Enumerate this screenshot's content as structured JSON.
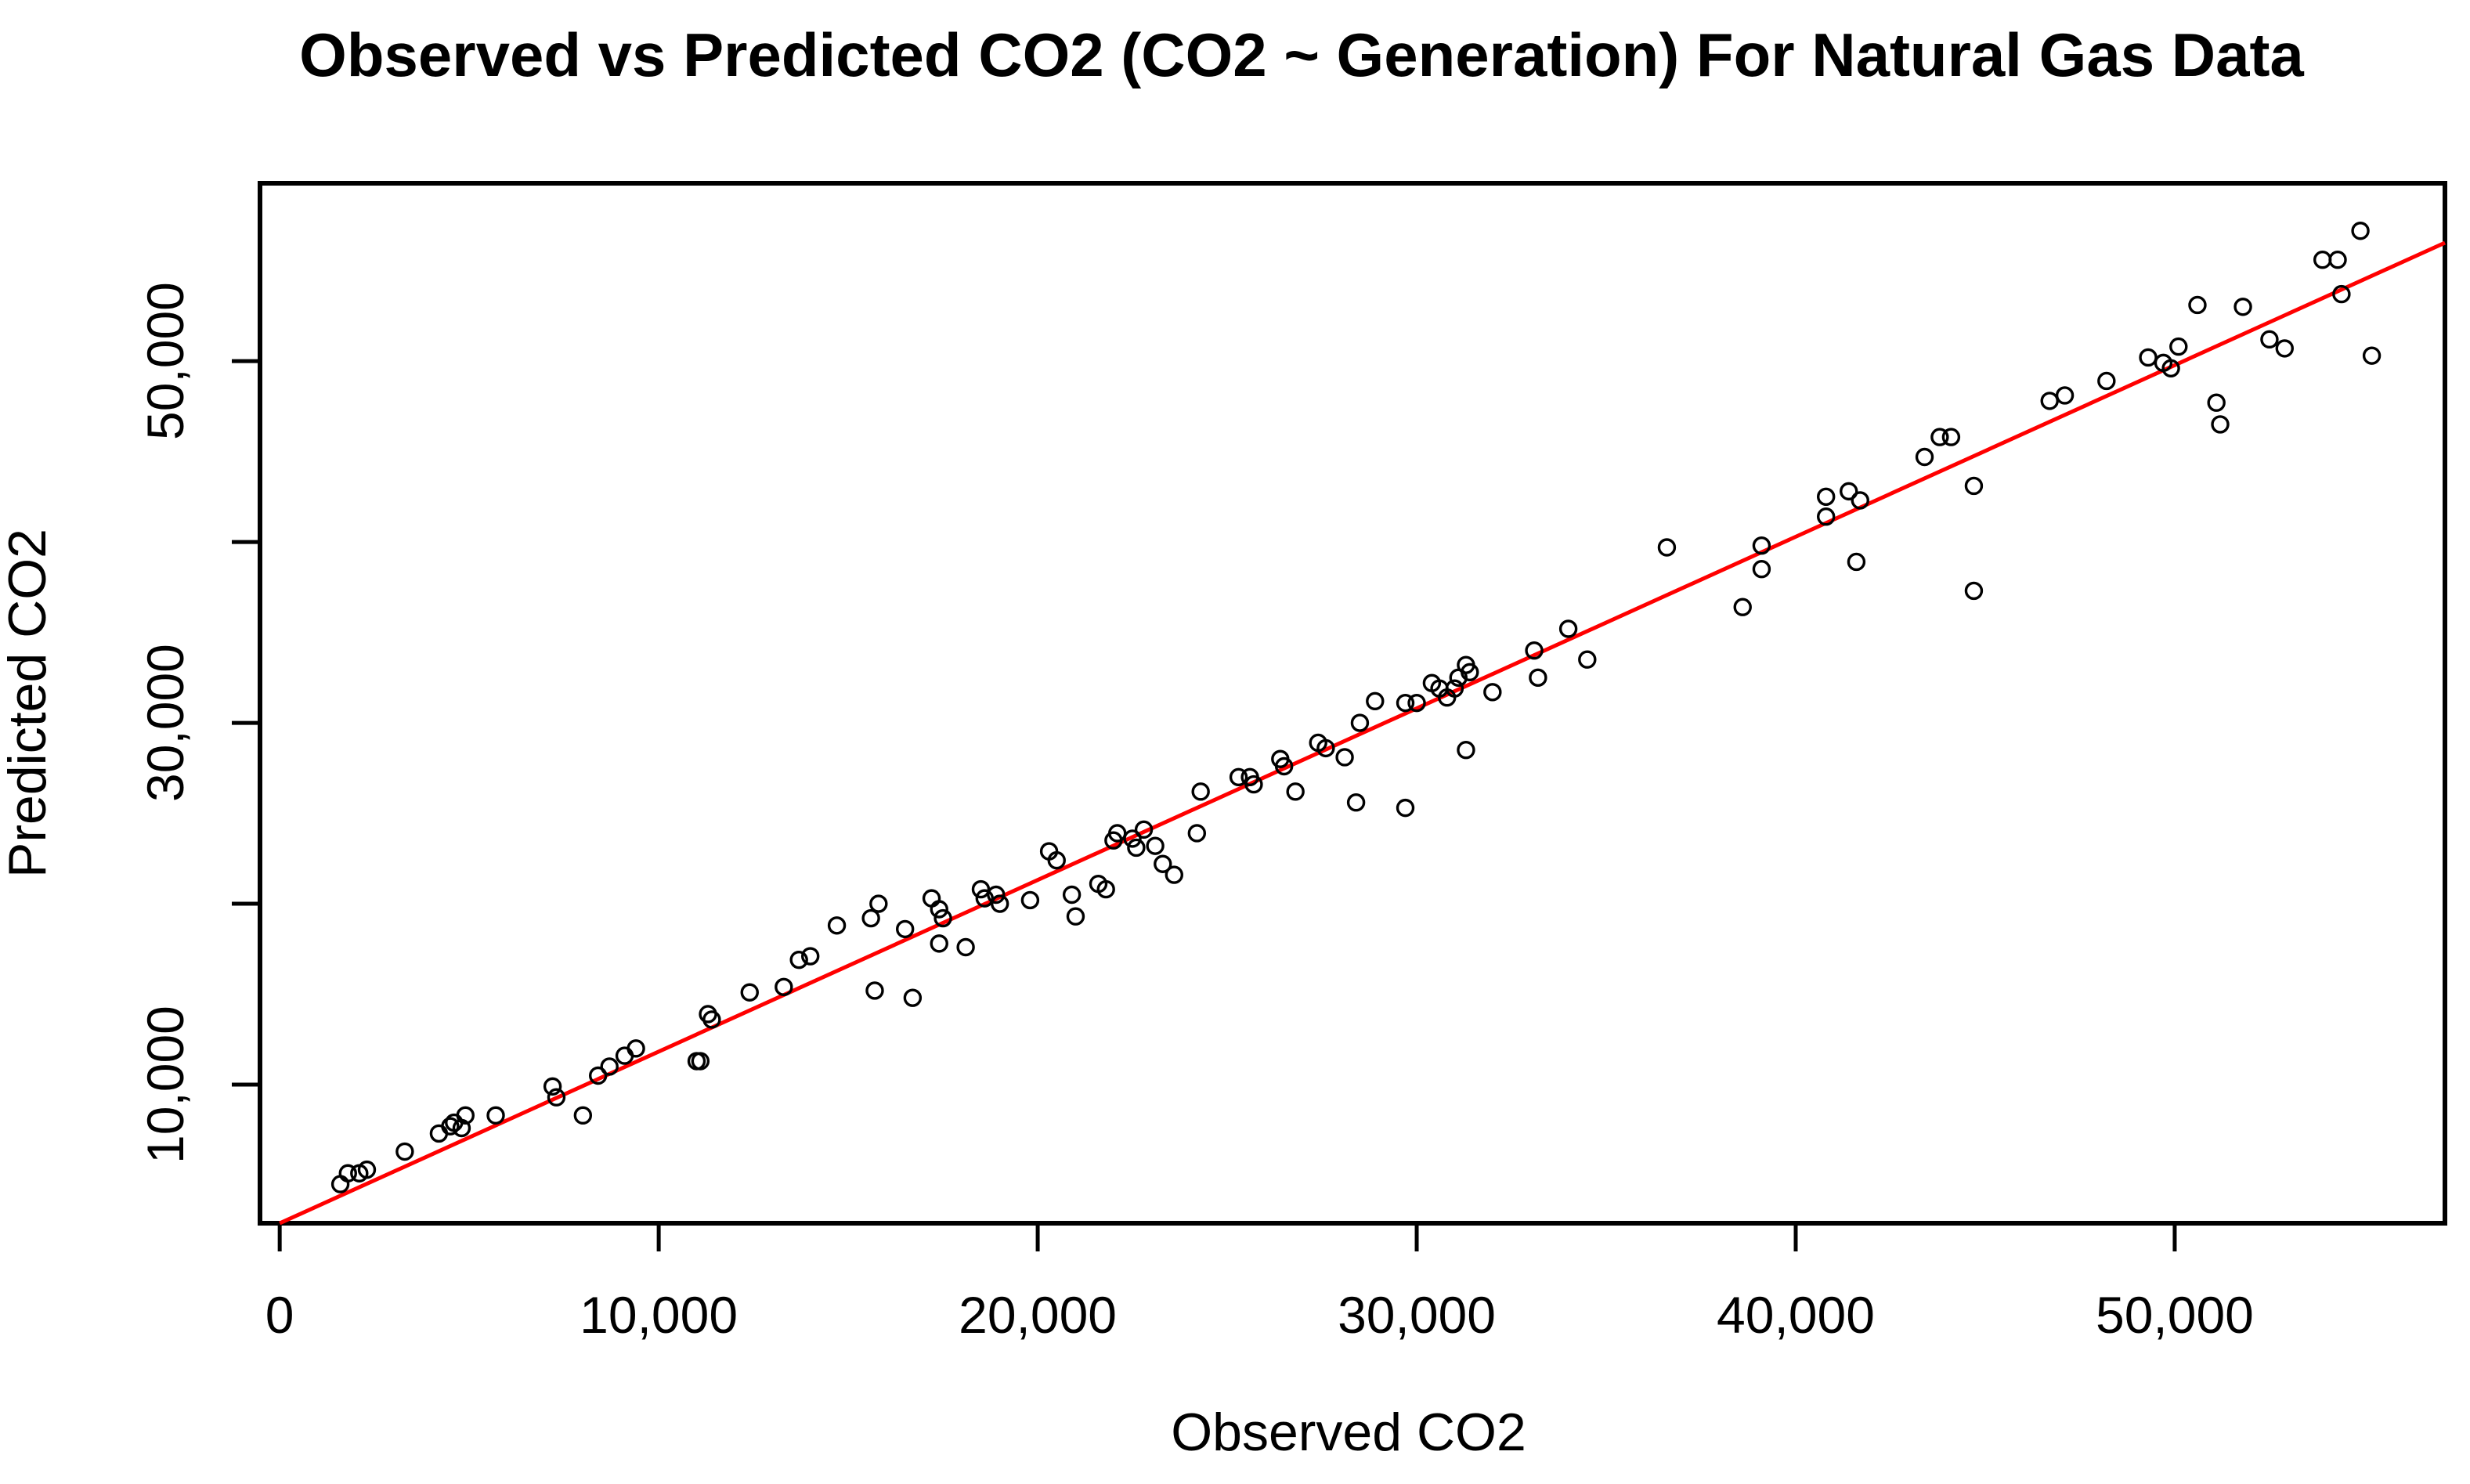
{
  "figure": {
    "background_color": "#FFFFFF",
    "axis_color": "#000000",
    "marker": "open-circle"
  },
  "chart_data": {
    "type": "scatter",
    "title": "Observed vs Predicted CO2 (CO2 ~ Generation) For Natural Gas Data",
    "xlabel": "Observed CO2",
    "ylabel": "Predicted CO2",
    "xlim": [
      -520,
      57130
    ],
    "ylim": [
      2340,
      59830
    ],
    "grid": false,
    "legend_position": "none",
    "point_color": "#000000",
    "x_ticks": [
      {
        "value": 0,
        "label": "0"
      },
      {
        "value": 10000,
        "label": "10,000"
      },
      {
        "value": 20000,
        "label": "20,000"
      },
      {
        "value": 30000,
        "label": "30,000"
      },
      {
        "value": 40000,
        "label": "40,000"
      },
      {
        "value": 50000,
        "label": "50,000"
      }
    ],
    "y_ticks": [
      {
        "value": 10000,
        "label": "10,000"
      },
      {
        "value": 20000,
        "label": ""
      },
      {
        "value": 30000,
        "label": "30,000"
      },
      {
        "value": 40000,
        "label": ""
      },
      {
        "value": 50000,
        "label": "50,000"
      },
      {
        "value": 60000,
        "label": ""
      }
    ],
    "fit_line": {
      "color": "#FF0000",
      "x1": 0,
      "y1": 2340,
      "x2": 57130,
      "y2": 56540
    },
    "points": [
      [
        1600,
        4500
      ],
      [
        1800,
        5100
      ],
      [
        2100,
        5100
      ],
      [
        2300,
        5300
      ],
      [
        3300,
        6300
      ],
      [
        4200,
        7300
      ],
      [
        4500,
        7700
      ],
      [
        4600,
        7900
      ],
      [
        4800,
        7600
      ],
      [
        4900,
        8300
      ],
      [
        5700,
        8300
      ],
      [
        7200,
        9900
      ],
      [
        7300,
        9300
      ],
      [
        8000,
        8300
      ],
      [
        8400,
        10500
      ],
      [
        8700,
        11000
      ],
      [
        9100,
        11600
      ],
      [
        9400,
        12000
      ],
      [
        11000,
        11300
      ],
      [
        11100,
        11300
      ],
      [
        11300,
        13900
      ],
      [
        11400,
        13600
      ],
      [
        12400,
        15100
      ],
      [
        13300,
        15400
      ],
      [
        13700,
        16900
      ],
      [
        14000,
        17100
      ],
      [
        14700,
        18800
      ],
      [
        15600,
        19200
      ],
      [
        15700,
        15200
      ],
      [
        15800,
        20000
      ],
      [
        16500,
        18600
      ],
      [
        16700,
        14800
      ],
      [
        17200,
        20300
      ],
      [
        17400,
        19700
      ],
      [
        17400,
        17800
      ],
      [
        17500,
        19200
      ],
      [
        18100,
        17600
      ],
      [
        18500,
        20800
      ],
      [
        18600,
        20300
      ],
      [
        18900,
        20500
      ],
      [
        19000,
        20000
      ],
      [
        19800,
        20200
      ],
      [
        20300,
        22900
      ],
      [
        20500,
        22400
      ],
      [
        20900,
        20500
      ],
      [
        21000,
        19300
      ],
      [
        21600,
        21100
      ],
      [
        21800,
        20800
      ],
      [
        22000,
        23500
      ],
      [
        22100,
        23900
      ],
      [
        22500,
        23600
      ],
      [
        22600,
        23100
      ],
      [
        22800,
        24100
      ],
      [
        23100,
        23200
      ],
      [
        23300,
        22200
      ],
      [
        23600,
        21600
      ],
      [
        24200,
        23900
      ],
      [
        24300,
        26200
      ],
      [
        25300,
        27000
      ],
      [
        25600,
        27000
      ],
      [
        25700,
        26600
      ],
      [
        26400,
        28000
      ],
      [
        26500,
        27600
      ],
      [
        26800,
        26200
      ],
      [
        27400,
        28900
      ],
      [
        27600,
        28600
      ],
      [
        28100,
        28100
      ],
      [
        28400,
        25600
      ],
      [
        28500,
        30000
      ],
      [
        28900,
        31200
      ],
      [
        29700,
        25300
      ],
      [
        29700,
        31100
      ],
      [
        30000,
        31100
      ],
      [
        30400,
        32200
      ],
      [
        30600,
        31900
      ],
      [
        30800,
        31400
      ],
      [
        31000,
        31900
      ],
      [
        31100,
        32500
      ],
      [
        31300,
        33200
      ],
      [
        31300,
        28500
      ],
      [
        31400,
        32800
      ],
      [
        32000,
        31700
      ],
      [
        33100,
        34000
      ],
      [
        33200,
        32500
      ],
      [
        34000,
        35200
      ],
      [
        34500,
        33500
      ],
      [
        36600,
        39700
      ],
      [
        38600,
        36400
      ],
      [
        39100,
        39800
      ],
      [
        39100,
        38500
      ],
      [
        40800,
        42500
      ],
      [
        40800,
        41400
      ],
      [
        41400,
        42800
      ],
      [
        41700,
        42300
      ],
      [
        41600,
        38900
      ],
      [
        43400,
        44700
      ],
      [
        43800,
        45800
      ],
      [
        44100,
        45800
      ],
      [
        44700,
        43100
      ],
      [
        44700,
        37300
      ],
      [
        46700,
        47800
      ],
      [
        47100,
        48100
      ],
      [
        48200,
        48900
      ],
      [
        49300,
        50200
      ],
      [
        49700,
        49900
      ],
      [
        50100,
        50800
      ],
      [
        49900,
        49600
      ],
      [
        51100,
        47700
      ],
      [
        51200,
        46500
      ],
      [
        50600,
        53100
      ],
      [
        51800,
        53000
      ],
      [
        52500,
        51200
      ],
      [
        52900,
        50700
      ],
      [
        53900,
        55600
      ],
      [
        54300,
        55600
      ],
      [
        54400,
        53700
      ],
      [
        54900,
        57200
      ],
      [
        55200,
        50300
      ]
    ]
  }
}
